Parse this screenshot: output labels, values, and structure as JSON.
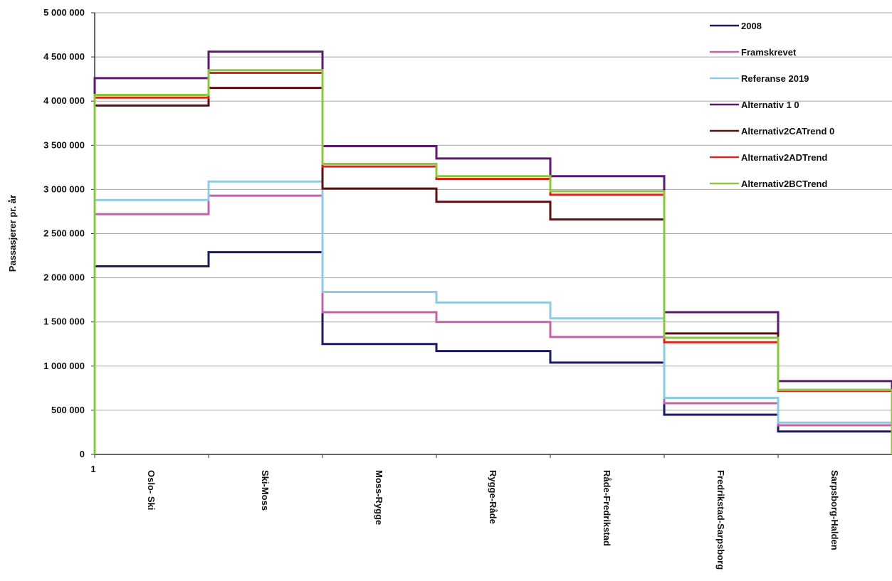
{
  "chart_data": {
    "type": "line",
    "step": true,
    "title": "",
    "xlabel": "",
    "ylabel": "Passasjerer pr. år",
    "ylim": [
      0,
      5000000
    ],
    "yticks": [
      0,
      500000,
      1000000,
      1500000,
      2000000,
      2500000,
      3000000,
      3500000,
      4000000,
      4500000,
      5000000
    ],
    "ytick_labels": [
      "0",
      "500 000",
      "1 000 000",
      "1 500 000",
      "2 000 000",
      "2 500 000",
      "3 000 000",
      "3 500 000",
      "4 000 000",
      "4 500 000",
      "5 000 000"
    ],
    "x_origin_label": "1",
    "categories": [
      "Oslo- Ski",
      "Ski-Moss",
      "Moss-Rygge",
      "Rygge-Råde",
      "Råde-Fredrikstad",
      "Fredrikstad-Sarpsborg",
      "Sarpsborg-Halden"
    ],
    "grid": true,
    "legend_position": "top-right",
    "series": [
      {
        "name": "2008",
        "color": "#1b1b5e",
        "values": [
          2130000,
          2290000,
          1250000,
          1170000,
          1040000,
          450000,
          260000
        ]
      },
      {
        "name": "Framskrevet",
        "color": "#c064a8",
        "values": [
          2720000,
          2930000,
          1610000,
          1500000,
          1330000,
          580000,
          330000
        ]
      },
      {
        "name": "Referanse 2019",
        "color": "#8ecbe0",
        "values": [
          2880000,
          3090000,
          1840000,
          1720000,
          1540000,
          640000,
          360000
        ]
      },
      {
        "name": "Alternativ 1 0",
        "color": "#5a1a6e",
        "values": [
          4260000,
          4560000,
          3490000,
          3350000,
          3150000,
          1610000,
          830000
        ]
      },
      {
        "name": "Alternativ2CATrend 0",
        "color": "#5c0f10",
        "values": [
          3950000,
          4150000,
          3010000,
          2860000,
          2660000,
          1370000,
          730000
        ]
      },
      {
        "name": "Alternativ2ADTrend",
        "color": "#d7261e",
        "values": [
          4040000,
          4320000,
          3260000,
          3120000,
          2940000,
          1270000,
          720000
        ]
      },
      {
        "name": "Alternativ2BCTrend",
        "color": "#8cc63f",
        "values": [
          4070000,
          4350000,
          3290000,
          3150000,
          2980000,
          1320000,
          730000
        ]
      }
    ]
  }
}
